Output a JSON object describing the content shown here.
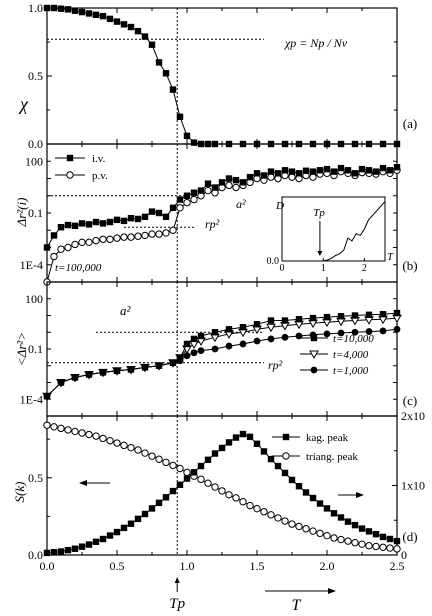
{
  "chart_data": [
    {
      "panel_label": "(a)",
      "type": "line",
      "ylabel": "χ",
      "ylim": [
        0,
        1.0
      ],
      "yticks": [
        "0.0",
        "0.5",
        "1.0"
      ],
      "xlim": [
        0,
        2.5
      ],
      "annotation": "χp = Np / Nv",
      "ref_line_y": 0.77,
      "series": [
        {
          "marker": "filled-square",
          "x": [
            0.0,
            0.05,
            0.1,
            0.15,
            0.2,
            0.25,
            0.3,
            0.35,
            0.4,
            0.45,
            0.5,
            0.55,
            0.6,
            0.65,
            0.7,
            0.75,
            0.8,
            0.85,
            0.9,
            0.95,
            1.0,
            1.05,
            1.1,
            1.15,
            1.2,
            1.3,
            1.4,
            1.5,
            1.6,
            1.7,
            1.8,
            1.9,
            2.0,
            2.1,
            2.2,
            2.3,
            2.4,
            2.5
          ],
          "y": [
            1.0,
            1.0,
            0.995,
            0.99,
            0.98,
            0.97,
            0.96,
            0.95,
            0.94,
            0.92,
            0.9,
            0.88,
            0.86,
            0.83,
            0.79,
            0.73,
            0.6,
            0.52,
            0.4,
            0.2,
            0.06,
            0.01,
            0.0,
            0.0,
            0.0,
            0.0,
            0.0,
            0.0,
            0.0,
            0.0,
            0.0,
            0.0,
            0.0,
            0.0,
            0.0,
            0.0,
            0.0,
            0.0
          ]
        }
      ]
    },
    {
      "panel_label": "(b)",
      "type": "line",
      "ylabel": "Δr²(i)",
      "yscale": "log",
      "ylim": [
        1e-05,
        1000
      ],
      "yticks": [
        "1E-4",
        "0.1",
        "100"
      ],
      "xlim": [
        0,
        2.5
      ],
      "annotations": [
        "t=100,000",
        "a²",
        "rp²"
      ],
      "ref_line_a2": 1.0,
      "ref_line_rp2": 0.015,
      "series": [
        {
          "name": "i.v.",
          "marker": "filled-square",
          "x": [
            0.0,
            0.05,
            0.1,
            0.15,
            0.2,
            0.25,
            0.3,
            0.35,
            0.4,
            0.45,
            0.5,
            0.55,
            0.6,
            0.65,
            0.7,
            0.75,
            0.8,
            0.85,
            0.9,
            0.95,
            1.0,
            1.05,
            1.1,
            1.15,
            1.2,
            1.25,
            1.3,
            1.35,
            1.4,
            1.45,
            1.5,
            1.55,
            1.6,
            1.65,
            1.7,
            1.75,
            1.8,
            1.85,
            1.9,
            1.95,
            2.0,
            2.05,
            2.1,
            2.15,
            2.2,
            2.25,
            2.3,
            2.35,
            2.4,
            2.45,
            2.5
          ],
          "y": [
            0.001,
            0.005,
            0.015,
            0.02,
            0.018,
            0.025,
            0.022,
            0.03,
            0.025,
            0.03,
            0.04,
            0.035,
            0.05,
            0.045,
            0.06,
            0.12,
            0.1,
            0.06,
            0.2,
            0.6,
            1.0,
            1.5,
            2.0,
            5.0,
            3.0,
            6.0,
            10.0,
            8.0,
            6.0,
            12.0,
            20.0,
            15.0,
            25.0,
            20.0,
            30.0,
            25.0,
            20.0,
            28.0,
            25.0,
            30.0,
            35.0,
            25.0,
            40.0,
            30.0,
            20.0,
            35.0,
            30.0,
            25.0,
            40.0,
            30.0,
            45.0
          ]
        },
        {
          "name": "p.v.",
          "marker": "open-circle",
          "x": [
            0.0,
            0.05,
            0.1,
            0.15,
            0.2,
            0.25,
            0.3,
            0.35,
            0.4,
            0.45,
            0.5,
            0.55,
            0.6,
            0.65,
            0.7,
            0.75,
            0.8,
            0.85,
            0.9,
            0.95,
            1.0,
            1.05,
            1.1,
            1.15,
            1.2,
            1.25,
            1.3,
            1.35,
            1.4,
            1.45,
            1.5,
            1.55,
            1.6,
            1.65,
            1.7,
            1.75,
            1.8,
            1.85,
            1.9,
            1.95,
            2.0,
            2.05,
            2.1,
            2.15,
            2.2,
            2.25,
            2.3,
            2.35,
            2.4,
            2.45,
            2.5
          ],
          "y": [
            1e-05,
            0.0003,
            0.0008,
            0.001,
            0.0015,
            0.002,
            0.002,
            0.0025,
            0.003,
            0.003,
            0.0035,
            0.004,
            0.004,
            0.0045,
            0.005,
            0.006,
            0.006,
            0.007,
            0.01,
            0.2,
            0.4,
            0.6,
            1.0,
            2.0,
            1.5,
            3.0,
            4.0,
            3.0,
            4.0,
            6.0,
            10.0,
            8.0,
            12.0,
            10.0,
            15.0,
            12.0,
            10.0,
            15.0,
            12.0,
            18.0,
            20.0,
            15.0,
            25.0,
            20.0,
            15.0,
            22.0,
            20.0,
            18.0,
            25.0,
            20.0,
            30.0
          ]
        }
      ],
      "inset": {
        "xlabel": "T",
        "ylabel": "D",
        "xticks": [
          "0",
          "1",
          "2"
        ],
        "yticks": [
          "0.0"
        ],
        "annotation": "Tp",
        "x": [
          0.0,
          0.2,
          0.4,
          0.6,
          0.8,
          0.9,
          1.0,
          1.1,
          1.2,
          1.3,
          1.4,
          1.5,
          1.6,
          1.7,
          1.8,
          1.9,
          2.0,
          2.1,
          2.2,
          2.3,
          2.4,
          2.5
        ],
        "y": [
          0.0,
          0.0,
          0.0,
          0.0,
          0.0,
          0.0,
          0.0,
          0.01,
          0.03,
          0.06,
          0.08,
          0.12,
          0.25,
          0.22,
          0.3,
          0.28,
          0.35,
          0.45,
          0.5,
          0.55,
          0.6,
          0.65
        ]
      }
    },
    {
      "panel_label": "(c)",
      "type": "line",
      "ylabel": "<Δr²>",
      "yscale": "log",
      "ylim": [
        1e-05,
        1000
      ],
      "yticks": [
        "1E-4",
        "0.1",
        "100"
      ],
      "xlim": [
        0,
        2.5
      ],
      "annotations": [
        "a²",
        "rp²"
      ],
      "ref_line_a2": 1.0,
      "ref_line_rp2": 0.015,
      "series": [
        {
          "name": "t=10,000",
          "marker": "filled-square",
          "x": [
            0.0,
            0.1,
            0.2,
            0.3,
            0.4,
            0.5,
            0.6,
            0.7,
            0.8,
            0.9,
            0.95,
            1.0,
            1.05,
            1.1,
            1.2,
            1.3,
            1.4,
            1.5,
            1.6,
            1.7,
            1.8,
            1.9,
            2.0,
            2.1,
            2.2,
            2.3,
            2.4,
            2.5
          ],
          "y": [
            0.00015,
            0.001,
            0.002,
            0.003,
            0.004,
            0.005,
            0.006,
            0.008,
            0.01,
            0.015,
            0.03,
            0.2,
            0.4,
            0.6,
            1.0,
            1.5,
            2.0,
            3.0,
            5.0,
            5.0,
            6.0,
            7.0,
            8.0,
            9.0,
            10.0,
            11.0,
            12.0,
            14.0
          ]
        },
        {
          "name": "t=4,000",
          "marker": "open-triangle-down",
          "x": [
            0.0,
            0.1,
            0.2,
            0.3,
            0.4,
            0.5,
            0.6,
            0.7,
            0.8,
            0.9,
            0.95,
            1.0,
            1.05,
            1.1,
            1.2,
            1.3,
            1.4,
            1.5,
            1.6,
            1.7,
            1.8,
            1.9,
            2.0,
            2.1,
            2.2,
            2.3,
            2.4,
            2.5
          ],
          "y": [
            0.00015,
            0.001,
            0.002,
            0.003,
            0.004,
            0.005,
            0.006,
            0.008,
            0.01,
            0.015,
            0.03,
            0.1,
            0.2,
            0.3,
            0.5,
            0.8,
            1.0,
            1.5,
            2.0,
            2.5,
            3.0,
            3.5,
            4.0,
            4.5,
            5.0,
            5.5,
            6.0,
            7.0
          ]
        },
        {
          "name": "t=1,000",
          "marker": "filled-circle",
          "x": [
            0.0,
            0.1,
            0.2,
            0.3,
            0.4,
            0.5,
            0.6,
            0.7,
            0.8,
            0.9,
            0.95,
            1.0,
            1.05,
            1.1,
            1.2,
            1.3,
            1.4,
            1.5,
            1.6,
            1.7,
            1.8,
            1.9,
            2.0,
            2.1,
            2.2,
            2.3,
            2.4,
            2.5
          ],
          "y": [
            0.00015,
            0.001,
            0.002,
            0.003,
            0.004,
            0.005,
            0.006,
            0.008,
            0.01,
            0.015,
            0.02,
            0.04,
            0.06,
            0.08,
            0.1,
            0.15,
            0.2,
            0.3,
            0.4,
            0.5,
            0.6,
            0.7,
            0.8,
            0.9,
            1.0,
            1.1,
            1.2,
            1.5
          ]
        }
      ]
    },
    {
      "panel_label": "(d)",
      "type": "line",
      "ylabel": "S(k)",
      "xlabel": "T",
      "xlim": [
        0,
        2.5
      ],
      "xticks": [
        "0.0",
        "0.5",
        "1.0",
        "1.5",
        "2.0",
        "2.5"
      ],
      "ylim": [
        0,
        0.9
      ],
      "yticks": [
        "0.0",
        "0.5"
      ],
      "y2lim": [
        0,
        0.02
      ],
      "y2ticks": [
        "0",
        "1x10",
        "2x10"
      ],
      "annotation_x": "Tp",
      "series": [
        {
          "name": "kag. peak",
          "marker": "filled-square",
          "axis": "right",
          "x": [
            0.0,
            0.05,
            0.1,
            0.15,
            0.2,
            0.25,
            0.3,
            0.35,
            0.4,
            0.45,
            0.5,
            0.55,
            0.6,
            0.65,
            0.7,
            0.75,
            0.8,
            0.85,
            0.9,
            0.95,
            1.0,
            1.05,
            1.1,
            1.15,
            1.2,
            1.25,
            1.3,
            1.35,
            1.4,
            1.45,
            1.5,
            1.55,
            1.6,
            1.65,
            1.7,
            1.75,
            1.8,
            1.85,
            1.9,
            1.95,
            2.0,
            2.05,
            2.1,
            2.15,
            2.2,
            2.25,
            2.3,
            2.35,
            2.4,
            2.45,
            2.5
          ],
          "y": [
            0.0003,
            0.0004,
            0.0005,
            0.0007,
            0.0009,
            0.0012,
            0.0015,
            0.0019,
            0.0023,
            0.0028,
            0.0033,
            0.0039,
            0.0045,
            0.0052,
            0.0059,
            0.0067,
            0.0075,
            0.0083,
            0.0092,
            0.0101,
            0.011,
            0.0119,
            0.0128,
            0.0137,
            0.0146,
            0.0154,
            0.0162,
            0.0169,
            0.0174,
            0.017,
            0.016,
            0.0149,
            0.0138,
            0.0128,
            0.0118,
            0.0108,
            0.0099,
            0.009,
            0.0082,
            0.0074,
            0.0067,
            0.006,
            0.0054,
            0.0048,
            0.0043,
            0.0038,
            0.0034,
            0.003,
            0.0026,
            0.0023,
            0.002
          ]
        },
        {
          "name": "triang. peak",
          "marker": "open-circle",
          "axis": "left",
          "x": [
            0.0,
            0.05,
            0.1,
            0.15,
            0.2,
            0.25,
            0.3,
            0.35,
            0.4,
            0.45,
            0.5,
            0.55,
            0.6,
            0.65,
            0.7,
            0.75,
            0.8,
            0.85,
            0.9,
            0.95,
            1.0,
            1.05,
            1.1,
            1.15,
            1.2,
            1.25,
            1.3,
            1.35,
            1.4,
            1.45,
            1.5,
            1.55,
            1.6,
            1.65,
            1.7,
            1.75,
            1.8,
            1.85,
            1.9,
            1.95,
            2.0,
            2.05,
            2.1,
            2.15,
            2.2,
            2.25,
            2.3,
            2.35,
            2.4,
            2.45,
            2.5
          ],
          "y": [
            0.84,
            0.83,
            0.82,
            0.81,
            0.8,
            0.79,
            0.78,
            0.77,
            0.755,
            0.74,
            0.725,
            0.71,
            0.695,
            0.68,
            0.66,
            0.64,
            0.62,
            0.6,
            0.58,
            0.56,
            0.535,
            0.51,
            0.49,
            0.465,
            0.44,
            0.415,
            0.39,
            0.37,
            0.345,
            0.32,
            0.3,
            0.28,
            0.26,
            0.24,
            0.22,
            0.2,
            0.185,
            0.17,
            0.155,
            0.14,
            0.125,
            0.11,
            0.1,
            0.09,
            0.08,
            0.07,
            0.06,
            0.055,
            0.05,
            0.045,
            0.04
          ]
        }
      ]
    }
  ]
}
